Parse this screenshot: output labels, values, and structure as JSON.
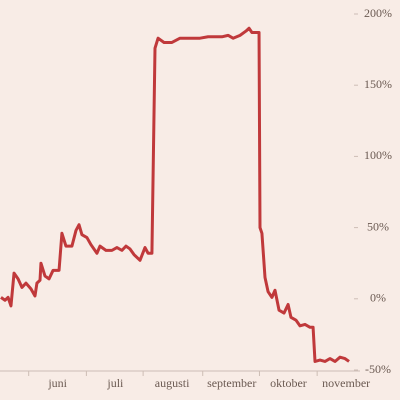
{
  "chart_data": {
    "type": "line",
    "x": [
      0.5,
      2.6,
      4.2,
      5.7,
      7.3,
      9.4,
      11.4,
      13.5,
      16.1,
      18.2,
      19.2,
      20.8,
      21.3,
      23.4,
      25.5,
      27.6,
      30.7,
      32.2,
      34.3,
      37.4,
      39.5,
      41.1,
      42.6,
      45.2,
      47.3,
      50.4,
      52,
      55.1,
      58.2,
      60.8,
      63.4,
      65.5,
      67.6,
      69.7,
      72.8,
      75.4,
      77,
      79,
      80.6,
      82.2,
      85.3,
      89.4,
      93.6,
      98.8,
      104,
      108.2,
      111.8,
      115.4,
      118.6,
      121.2,
      124.8,
      127.9,
      129.5,
      131,
      134.7,
      135.2,
      136.2,
      137.8,
      139.4,
      141.4,
      143,
      145.1,
      147.7,
      149.8,
      151.3,
      153.9,
      156,
      158.6,
      161.2,
      162.8,
      163.8,
      166.4,
      169,
      171.6,
      174.2,
      176.8,
      179.4,
      181.5
    ],
    "series": [
      {
        "color": "#c0393b",
        "values": [
          1,
          -1,
          1,
          -5,
          18,
          14,
          8,
          11,
          7,
          2,
          11,
          13,
          25,
          16,
          14,
          20,
          20,
          46,
          37,
          37,
          48,
          52,
          45,
          43,
          38,
          32,
          37,
          34,
          34,
          36,
          34,
          37,
          35,
          31,
          27,
          36,
          32,
          32,
          176,
          183,
          180,
          180,
          183,
          183,
          183,
          184,
          184,
          184,
          185,
          183,
          185,
          188,
          190,
          187,
          187,
          50,
          46,
          15,
          5,
          1,
          6,
          -8,
          -10,
          -4,
          -13,
          -15,
          -19,
          -18,
          -20,
          -20,
          -44,
          -43,
          -44,
          -42,
          -44,
          -41,
          -42,
          -44
        ]
      }
    ],
    "xlim": [
      0,
      182
    ],
    "xticks": [
      {
        "value": 30,
        "label": "juni"
      },
      {
        "value": 60,
        "label": "juli"
      },
      {
        "value": 89.5,
        "label": "augusti"
      },
      {
        "value": 120.5,
        "label": "september"
      },
      {
        "value": 150,
        "label": "oktober"
      },
      {
        "value": 180,
        "label": "november"
      }
    ],
    "ylim": [
      -50,
      200
    ],
    "yticks": [
      {
        "value": -50,
        "label": "-50%"
      },
      {
        "value": 0,
        "label": "0%"
      },
      {
        "value": 50,
        "label": "50%"
      },
      {
        "value": 100,
        "label": "100%"
      },
      {
        "value": 150,
        "label": "150%"
      },
      {
        "value": 200,
        "label": "200%"
      }
    ]
  }
}
